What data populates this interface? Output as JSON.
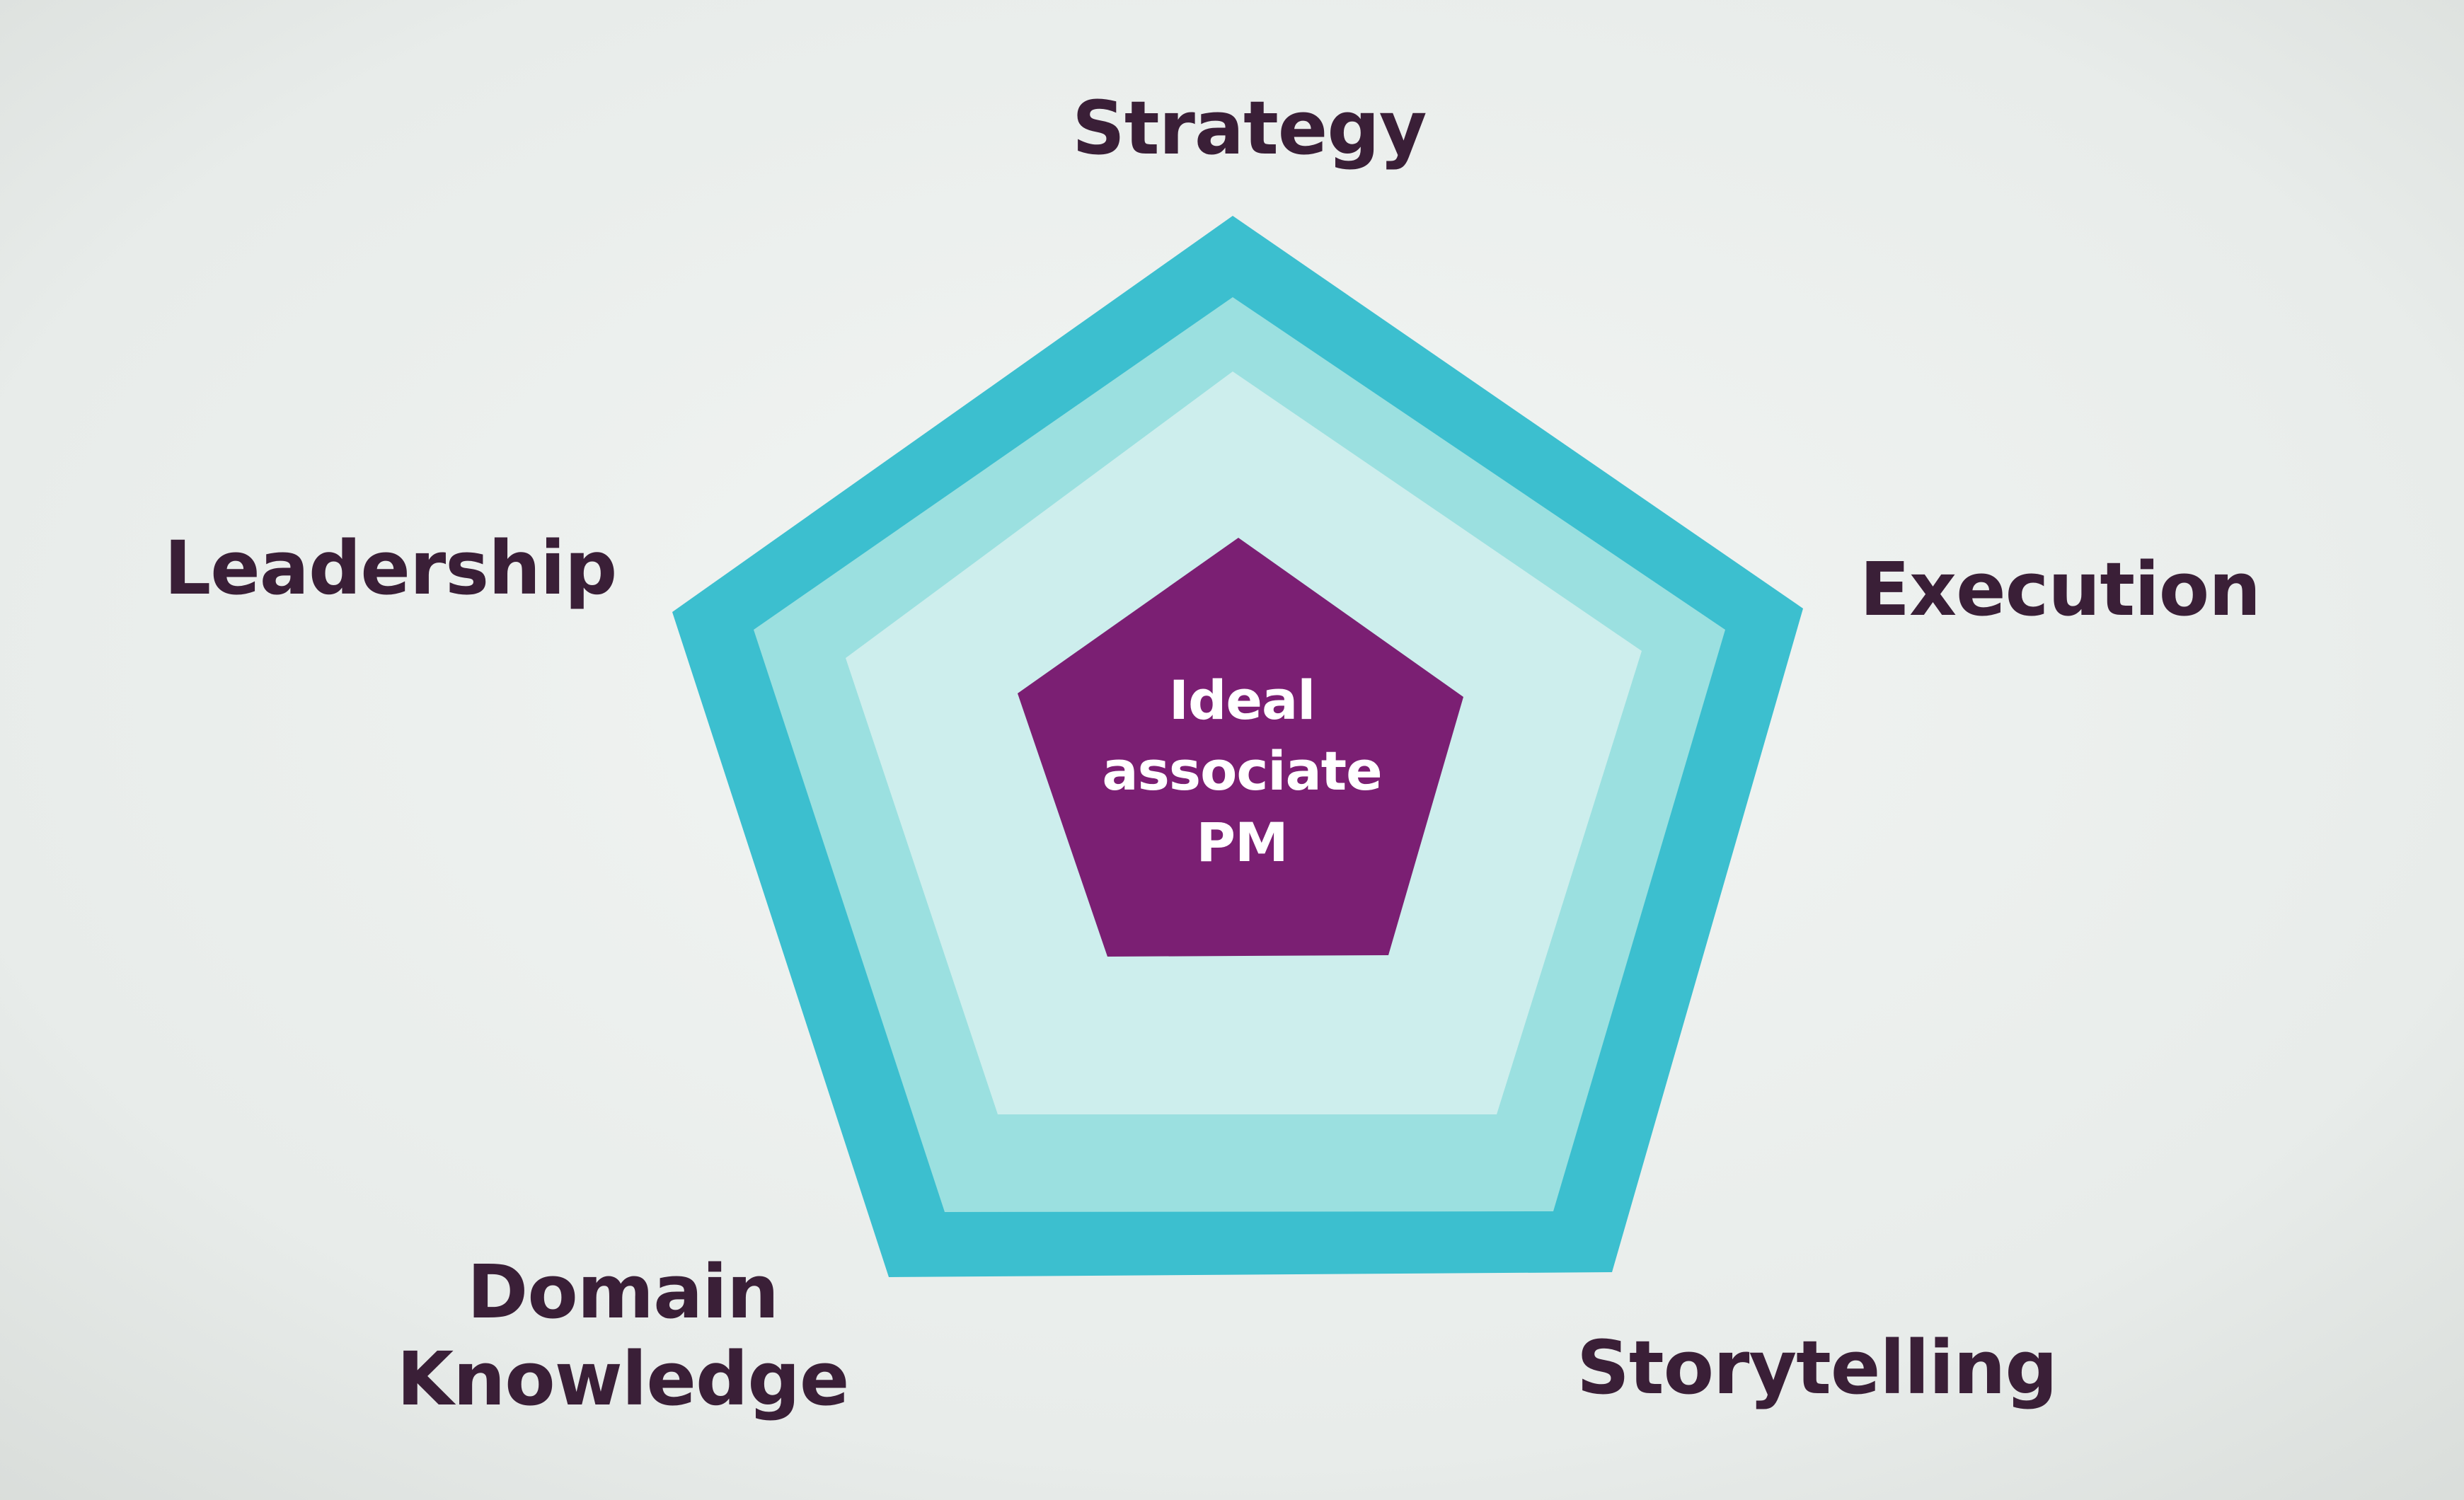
{
  "diagram": {
    "labels": {
      "strategy": "Strategy",
      "execution": "Execution",
      "leadership": "Leadership",
      "domain_line1": "Domain",
      "domain_line2": "Knowledge",
      "storytelling": "Storytelling"
    },
    "center": {
      "line1": "Ideal",
      "line2": "associate",
      "line3": "PM"
    },
    "colors": {
      "outer_ring": "#3cbfcf",
      "middle_ring": "#95dfe0",
      "inner_ring": "#c8eeee",
      "center_fill": "#7a1f72",
      "label_text": "#3a1f37",
      "background": "#eef1ef"
    }
  }
}
